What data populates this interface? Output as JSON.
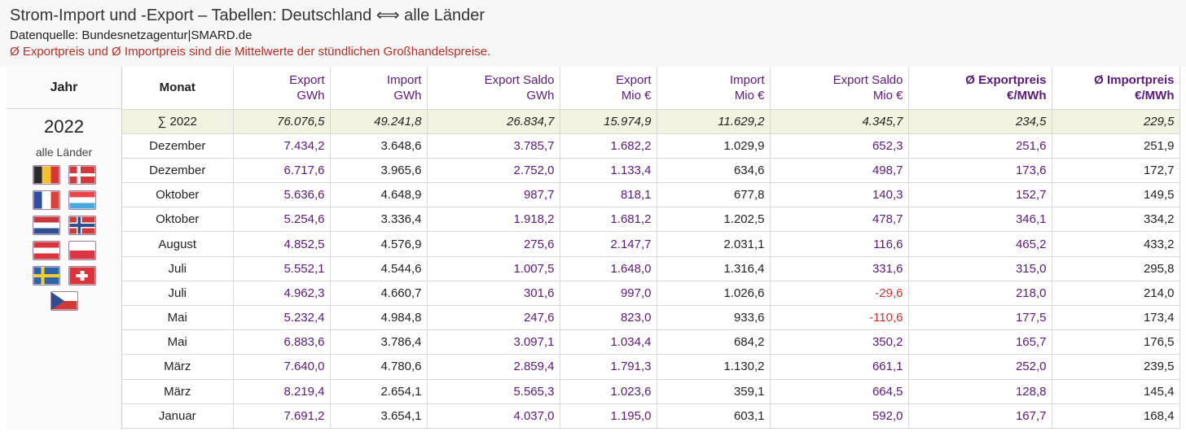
{
  "header": {
    "title": "Strom-Import und -Export – Tabellen: Deutschland ⟺ alle Länder",
    "source": "Datenquelle: Bundesnetzagentur|SMARD.de",
    "note": "Ø Exportpreis und Ø Importpreis sind die Mittelwerte der stündlichen Großhandelspreise."
  },
  "sidebar": {
    "header": "Jahr",
    "year": "2022",
    "all_label": "alle Länder",
    "flags": [
      {
        "name": "belgium-flag"
      },
      {
        "name": "denmark-flag"
      },
      {
        "name": "france-flag"
      },
      {
        "name": "luxembourg-flag"
      },
      {
        "name": "netherlands-flag"
      },
      {
        "name": "norway-flag"
      },
      {
        "name": "austria-flag"
      },
      {
        "name": "poland-flag"
      },
      {
        "name": "sweden-flag"
      },
      {
        "name": "switzerland-flag"
      },
      {
        "name": "czech-flag"
      }
    ]
  },
  "table": {
    "columns": [
      {
        "l1": "Monat",
        "l2": ""
      },
      {
        "l1": "Export",
        "l2": "GWh"
      },
      {
        "l1": "Import",
        "l2": "GWh"
      },
      {
        "l1": "Export Saldo",
        "l2": "GWh"
      },
      {
        "l1": "Export",
        "l2": "Mio €"
      },
      {
        "l1": "Import",
        "l2": "Mio €"
      },
      {
        "l1": "Export Saldo",
        "l2": "Mio €"
      },
      {
        "l1": "Ø Exportpreis",
        "l2": "€/MWh"
      },
      {
        "l1": "Ø Importpreis",
        "l2": "€/MWh"
      }
    ],
    "sum_row": [
      "∑ 2022",
      "76.076,5",
      "49.241,8",
      "26.834,7",
      "15.974,9",
      "11.629,2",
      "4.345,7",
      "234,5",
      "229,5"
    ],
    "rows": [
      [
        "Dezember",
        "7.434,2",
        "3.648,6",
        "3.785,7",
        "1.682,2",
        "1.029,9",
        "652,3",
        "251,6",
        "251,9"
      ],
      [
        "Dezember",
        "6.717,6",
        "3.965,6",
        "2.752,0",
        "1.133,4",
        "634,6",
        "498,7",
        "173,6",
        "172,7"
      ],
      [
        "Oktober",
        "5.636,6",
        "4.648,9",
        "987,7",
        "818,1",
        "677,8",
        "140,3",
        "152,7",
        "149,5"
      ],
      [
        "Oktober",
        "5.254,6",
        "3.336,4",
        "1.918,2",
        "1.681,2",
        "1.202,5",
        "478,7",
        "346,1",
        "334,2"
      ],
      [
        "August",
        "4.852,5",
        "4.576,9",
        "275,6",
        "2.147,7",
        "2.031,1",
        "116,6",
        "465,2",
        "433,2"
      ],
      [
        "Juli",
        "5.552,1",
        "4.544,6",
        "1.007,5",
        "1.648,0",
        "1.316,4",
        "331,6",
        "315,0",
        "295,8"
      ],
      [
        "Juli",
        "4.962,3",
        "4.660,7",
        "301,6",
        "997,0",
        "1.026,6",
        "-29,6",
        "218,0",
        "214,0"
      ],
      [
        "Mai",
        "5.232,4",
        "4.984,8",
        "247,6",
        "823,0",
        "933,6",
        "-110,6",
        "177,5",
        "173,4"
      ],
      [
        "Mai",
        "6.883,6",
        "3.786,4",
        "3.097,1",
        "1.034,4",
        "684,2",
        "350,2",
        "165,7",
        "176,5"
      ],
      [
        "März",
        "7.640,0",
        "4.780,6",
        "2.859,4",
        "1.791,3",
        "1.130,2",
        "661,1",
        "252,0",
        "239,5"
      ],
      [
        "März",
        "8.219,4",
        "2.654,1",
        "5.565,3",
        "1.023,6",
        "359,1",
        "664,5",
        "128,8",
        "145,4"
      ],
      [
        "Januar",
        "7.691,2",
        "3.654,1",
        "4.037,0",
        "1.195,0",
        "603,1",
        "592,0",
        "167,7",
        "168,4"
      ]
    ]
  },
  "colors": {
    "accent_purple": "#5a1a7a",
    "negative_red": "#d0312d",
    "note_red": "#b52f26",
    "sum_row_bg": "#f1f2df"
  }
}
